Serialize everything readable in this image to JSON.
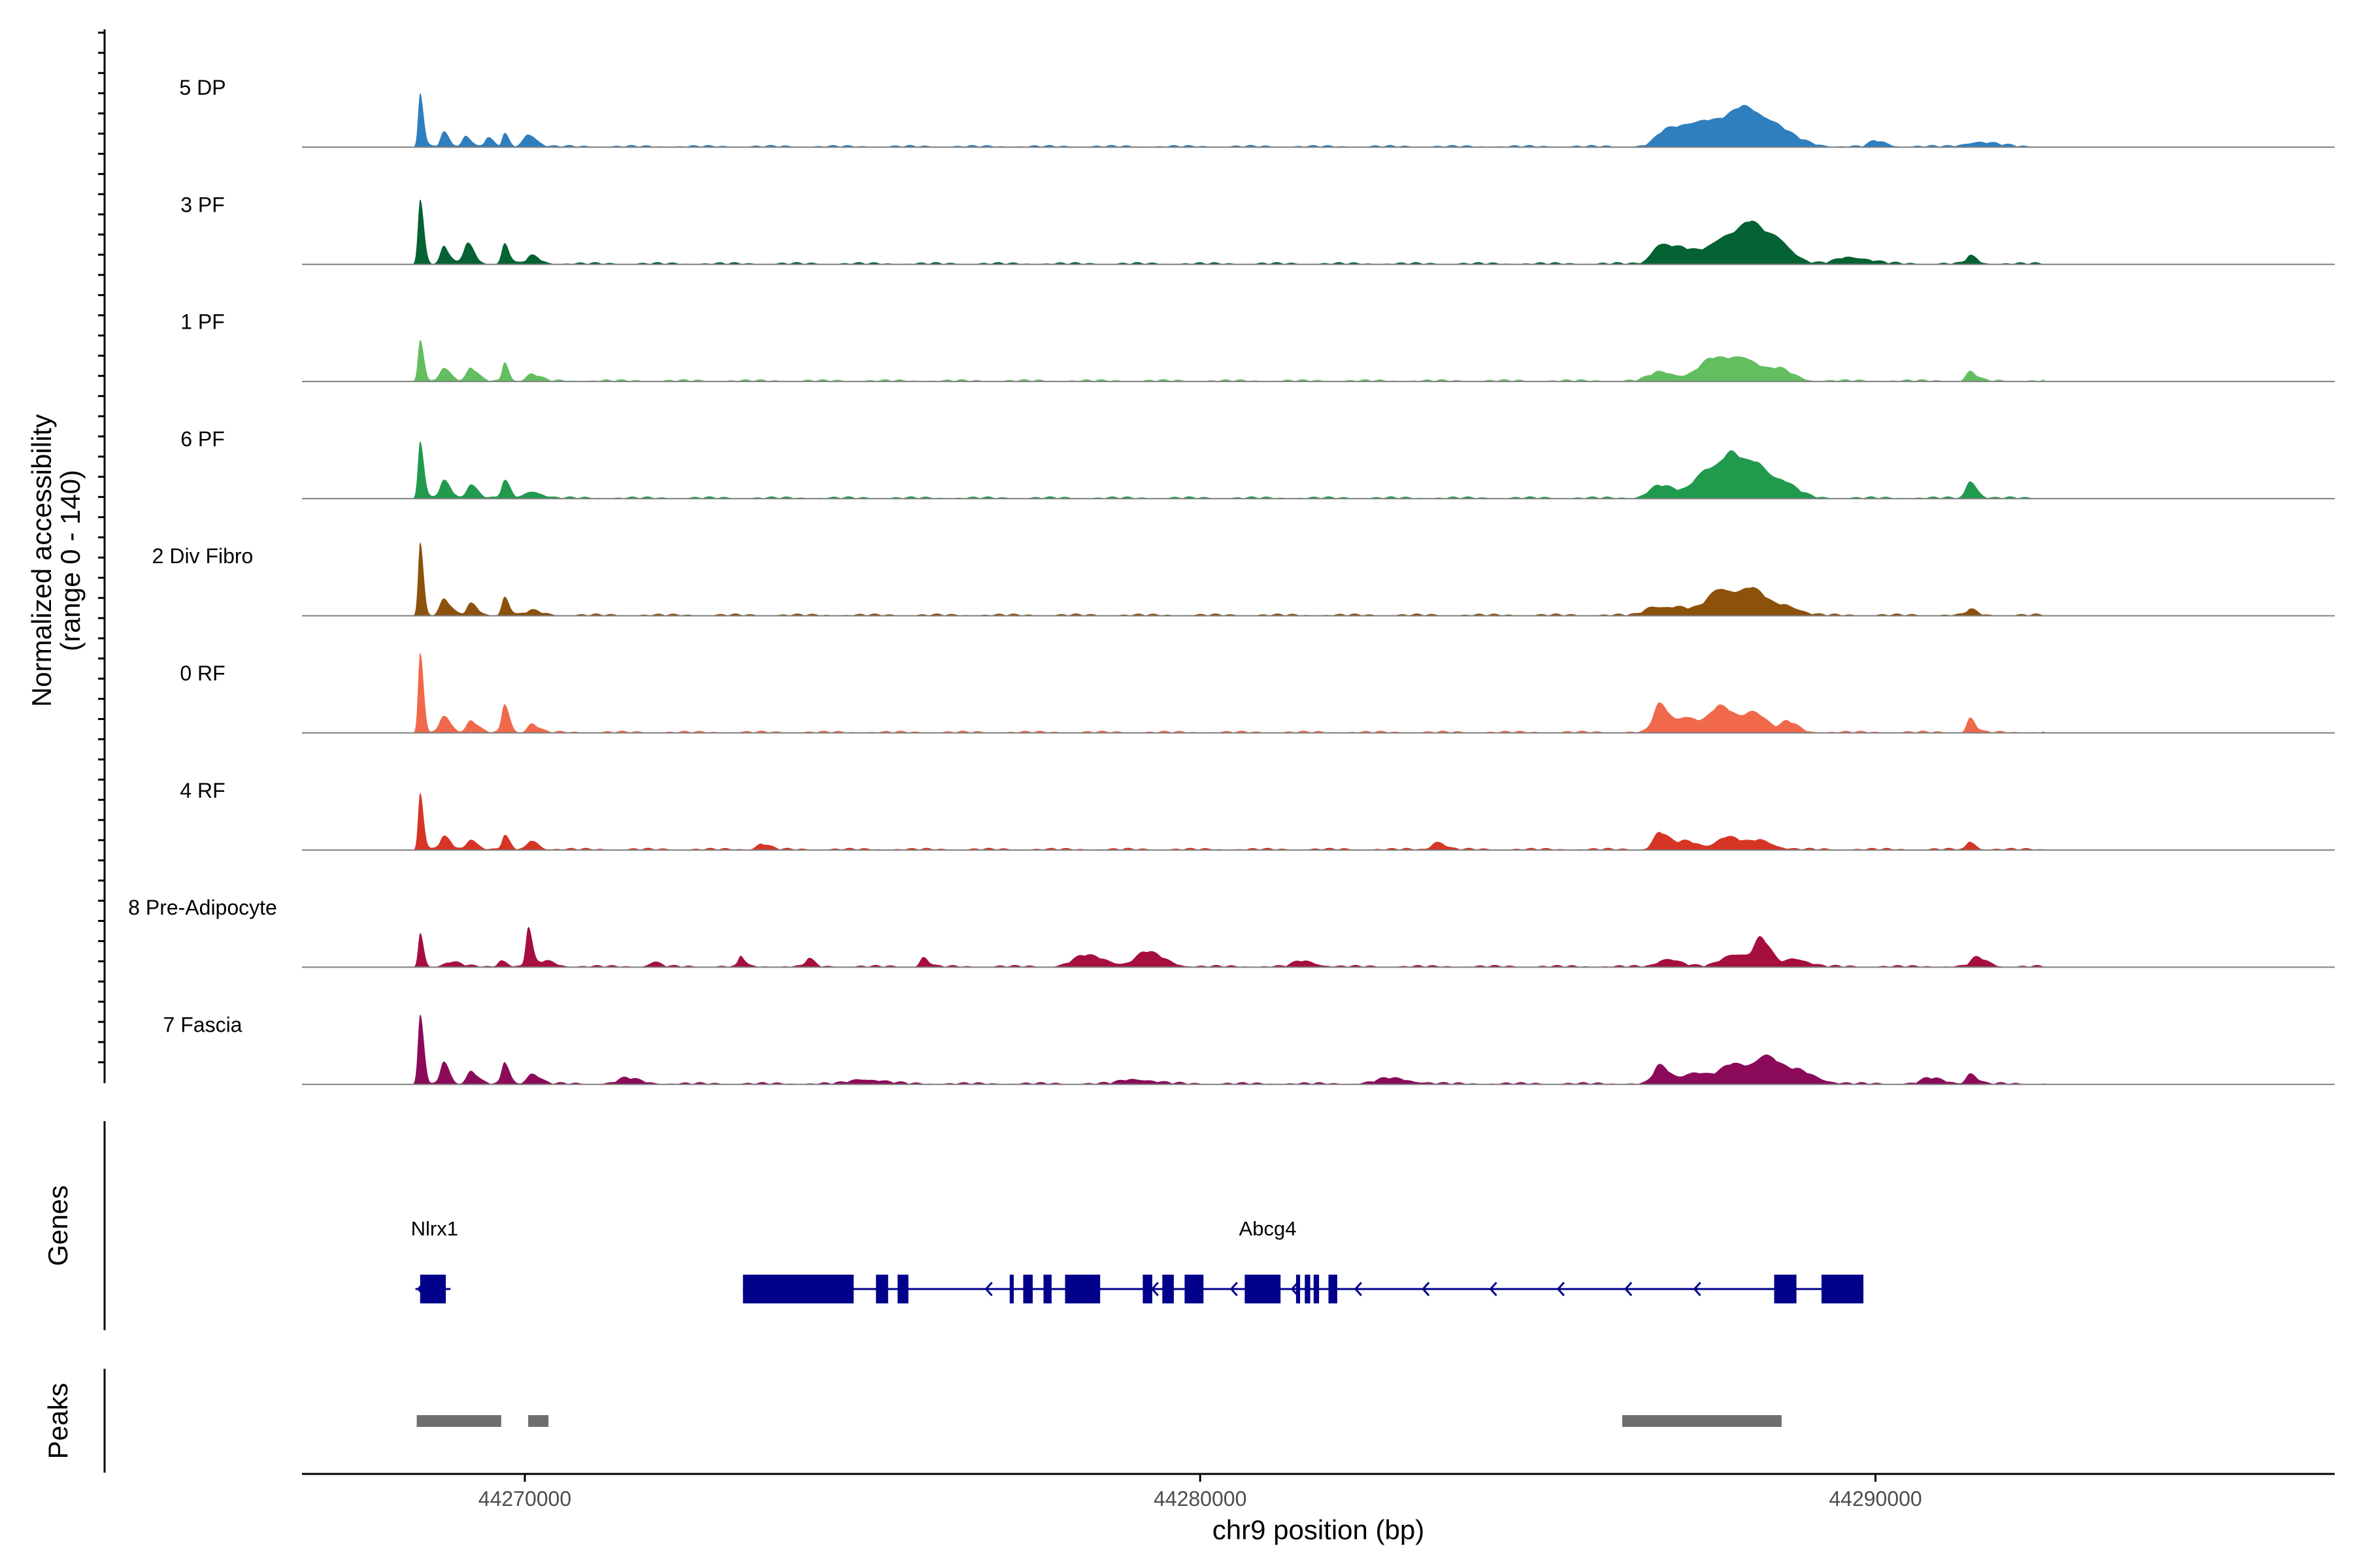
{
  "chart_data": {
    "type": "area",
    "chromosome": "chr9",
    "xlim": [
      44266700,
      44296800
    ],
    "x_ticks": [
      44270000,
      44280000,
      44290000
    ],
    "x_tick_labels": [
      "44270000",
      "44280000",
      "44290000"
    ],
    "xlabel": "chr9 position (bp)",
    "ylabel_line1": "Normalized accessibility",
    "ylabel_line2": "(range 0 - 140)",
    "ylim": [
      0,
      140
    ],
    "genes_label": "Genes",
    "peaks_label": "Peaks",
    "tracks": [
      {
        "name": "5 DP",
        "color": "#2F7FBF",
        "peaks": [
          [
            44268450,
            95,
            50
          ],
          [
            44268800,
            25,
            80
          ],
          [
            44269120,
            20,
            80
          ],
          [
            44269450,
            15,
            80
          ],
          [
            44269700,
            22,
            60
          ],
          [
            44270050,
            22,
            120
          ],
          [
            44286900,
            25,
            250
          ],
          [
            44287500,
            45,
            500
          ],
          [
            44288100,
            48,
            350
          ],
          [
            44288600,
            15,
            300
          ],
          [
            44290000,
            10,
            150
          ],
          [
            44291500,
            8,
            300
          ]
        ]
      },
      {
        "name": "3 PF",
        "color": "#046233",
        "peaks": [
          [
            44268450,
            115,
            55
          ],
          [
            44268800,
            30,
            80
          ],
          [
            44269150,
            36,
            100
          ],
          [
            44269700,
            35,
            70
          ],
          [
            44270100,
            14,
            120
          ],
          [
            44286800,
            32,
            200
          ],
          [
            44287200,
            22,
            300
          ],
          [
            44287800,
            44,
            350
          ],
          [
            44288200,
            50,
            300
          ],
          [
            44288600,
            20,
            200
          ],
          [
            44289600,
            12,
            300
          ],
          [
            44291400,
            14,
            100
          ]
        ]
      },
      {
        "name": "1 PF",
        "color": "#63BE60",
        "peaks": [
          [
            44268450,
            70,
            55
          ],
          [
            44268800,
            24,
            100
          ],
          [
            44269200,
            22,
            100
          ],
          [
            44269700,
            34,
            60
          ],
          [
            44270100,
            12,
            120
          ],
          [
            44286800,
            16,
            250
          ],
          [
            44287600,
            40,
            350
          ],
          [
            44288100,
            26,
            300
          ],
          [
            44288600,
            15,
            200
          ],
          [
            44291400,
            16,
            100
          ]
        ]
      },
      {
        "name": "6 PF",
        "color": "#219A4E",
        "peaks": [
          [
            44268450,
            100,
            55
          ],
          [
            44268800,
            30,
            100
          ],
          [
            44269200,
            25,
            100
          ],
          [
            44269700,
            30,
            80
          ],
          [
            44270100,
            12,
            150
          ],
          [
            44286800,
            22,
            250
          ],
          [
            44287500,
            50,
            300
          ],
          [
            44287900,
            58,
            250
          ],
          [
            44288300,
            42,
            250
          ],
          [
            44288700,
            16,
            200
          ],
          [
            44291400,
            30,
            100
          ]
        ]
      },
      {
        "name": "2 Div Fibro",
        "color": "#8C510A",
        "peaks": [
          [
            44268450,
            130,
            50
          ],
          [
            44268800,
            28,
            100
          ],
          [
            44269200,
            20,
            100
          ],
          [
            44269700,
            32,
            70
          ],
          [
            44270100,
            8,
            150
          ],
          [
            44286700,
            15,
            200
          ],
          [
            44287100,
            12,
            250
          ],
          [
            44287700,
            46,
            300
          ],
          [
            44288200,
            36,
            250
          ],
          [
            44288700,
            13,
            200
          ],
          [
            44291400,
            10,
            100
          ]
        ]
      },
      {
        "name": "0 RF",
        "color": "#F0694A",
        "peaks": [
          [
            44268450,
            140,
            50
          ],
          [
            44268800,
            30,
            100
          ],
          [
            44269200,
            20,
            100
          ],
          [
            44269700,
            50,
            70
          ],
          [
            44270100,
            15,
            100
          ],
          [
            44286800,
            50,
            150
          ],
          [
            44287200,
            26,
            200
          ],
          [
            44287700,
            45,
            250
          ],
          [
            44288200,
            32,
            200
          ],
          [
            44288700,
            18,
            150
          ],
          [
            44291400,
            25,
            80
          ]
        ]
      },
      {
        "name": "4 RF",
        "color": "#D63526",
        "peaks": [
          [
            44268450,
            100,
            50
          ],
          [
            44268800,
            22,
            100
          ],
          [
            44269200,
            18,
            100
          ],
          [
            44269700,
            24,
            70
          ],
          [
            44270100,
            16,
            100
          ],
          [
            44273500,
            10,
            120
          ],
          [
            44283500,
            14,
            120
          ],
          [
            44286800,
            30,
            150
          ],
          [
            44287200,
            14,
            200
          ],
          [
            44287800,
            22,
            250
          ],
          [
            44288300,
            14,
            200
          ],
          [
            44291400,
            14,
            80
          ]
        ]
      },
      {
        "name": "8 Pre-Adipocyte",
        "color": "#A50F3E",
        "peaks": [
          [
            44268450,
            60,
            50
          ],
          [
            44268900,
            8,
            150
          ],
          [
            44269650,
            12,
            80
          ],
          [
            44270050,
            70,
            60
          ],
          [
            44270300,
            10,
            150
          ],
          [
            44271900,
            8,
            100
          ],
          [
            44273200,
            18,
            60
          ],
          [
            44274200,
            14,
            80
          ],
          [
            44275900,
            16,
            80
          ],
          [
            44278300,
            20,
            300
          ],
          [
            44279200,
            26,
            250
          ],
          [
            44281500,
            10,
            200
          ],
          [
            44286900,
            14,
            200
          ],
          [
            44287900,
            22,
            300
          ],
          [
            44288300,
            42,
            150
          ],
          [
            44288800,
            14,
            200
          ],
          [
            44291500,
            16,
            150
          ]
        ]
      },
      {
        "name": "7 Fascia",
        "color": "#8C0A5A",
        "peaks": [
          [
            44268450,
            120,
            55
          ],
          [
            44268800,
            40,
            80
          ],
          [
            44269200,
            22,
            100
          ],
          [
            44269700,
            38,
            70
          ],
          [
            44270100,
            18,
            120
          ],
          [
            44271500,
            10,
            200
          ],
          [
            44275000,
            8,
            300
          ],
          [
            44279000,
            8,
            300
          ],
          [
            44282800,
            10,
            300
          ],
          [
            44286800,
            32,
            150
          ],
          [
            44287300,
            20,
            250
          ],
          [
            44287900,
            34,
            300
          ],
          [
            44288400,
            42,
            250
          ],
          [
            44288900,
            18,
            250
          ],
          [
            44290800,
            10,
            200
          ],
          [
            44291400,
            18,
            100
          ]
        ]
      }
    ],
    "genes": [
      {
        "name": "Nlrx1",
        "strand": "-",
        "exons": [
          [
            44268450,
            44268830
          ]
        ],
        "intron_range": [
          44268380,
          44268900
        ]
      },
      {
        "name": "Abcg4",
        "strand": "-",
        "exons": [
          [
            44273230,
            44274870
          ],
          [
            44275200,
            44275380
          ],
          [
            44275520,
            44275680
          ],
          [
            44277180,
            44277240
          ],
          [
            44277380,
            44277520
          ],
          [
            44277680,
            44277800
          ],
          [
            44278000,
            44278520
          ],
          [
            44279150,
            44279290
          ],
          [
            44279440,
            44279610
          ],
          [
            44279770,
            44280050
          ],
          [
            44280660,
            44281190
          ],
          [
            44281420,
            44281480
          ],
          [
            44281550,
            44281630
          ],
          [
            44281680,
            44281760
          ],
          [
            44281900,
            44282030
          ],
          [
            44288500,
            44288830
          ],
          [
            44289200,
            44289820
          ]
        ],
        "intron_range": [
          44273230,
          44289820
        ]
      }
    ],
    "gene_arrow_positions": [
      44268420,
      44276830,
      44279290,
      44280460,
      44281360,
      44282300,
      44283300,
      44284300,
      44285300,
      44286300,
      44287320
    ],
    "peak_regions": [
      [
        44268400,
        44269650
      ],
      [
        44270050,
        44270350
      ],
      [
        44286250,
        44288610
      ]
    ]
  }
}
